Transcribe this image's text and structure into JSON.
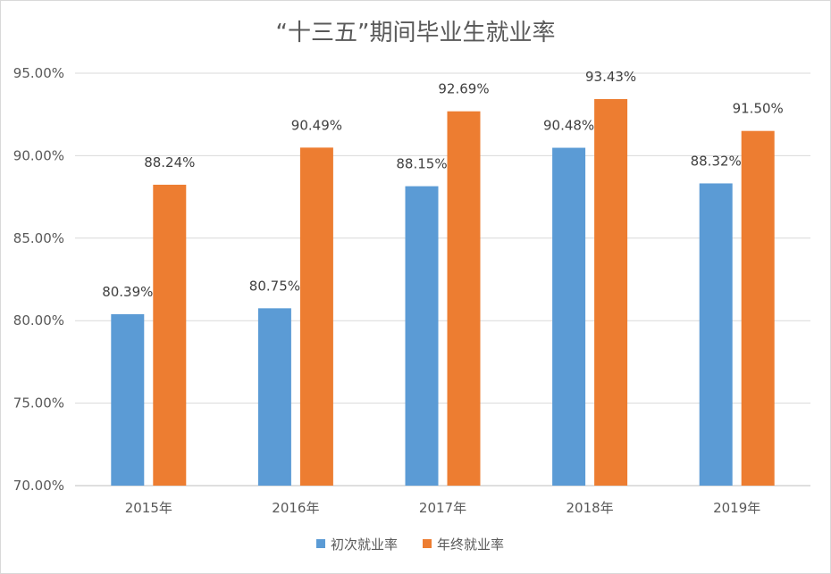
{
  "chart_data": {
    "type": "bar",
    "title": "“十三五”期间毕业生就业率",
    "categories": [
      "2015年",
      "2016年",
      "2017年",
      "2018年",
      "2019年"
    ],
    "series": [
      {
        "name": "初次就业率",
        "color": "#5b9bd5",
        "values": [
          80.39,
          80.75,
          88.15,
          90.48,
          88.32
        ],
        "labels": [
          "80.39%",
          "80.75%",
          "88.15%",
          "90.48%",
          "88.32%"
        ]
      },
      {
        "name": "年终就业率",
        "color": "#ed7d31",
        "values": [
          88.24,
          90.49,
          92.69,
          93.43,
          91.5
        ],
        "labels": [
          "88.24%",
          "90.49%",
          "92.69%",
          "93.43%",
          "91.50%"
        ]
      }
    ],
    "ylim": [
      70,
      95
    ],
    "yticks": [
      70,
      75,
      80,
      85,
      90,
      95
    ],
    "ytick_labels": [
      "70.00%",
      "75.00%",
      "80.00%",
      "85.00%",
      "90.00%",
      "95.00%"
    ],
    "grid": true,
    "legend": "bottom"
  }
}
